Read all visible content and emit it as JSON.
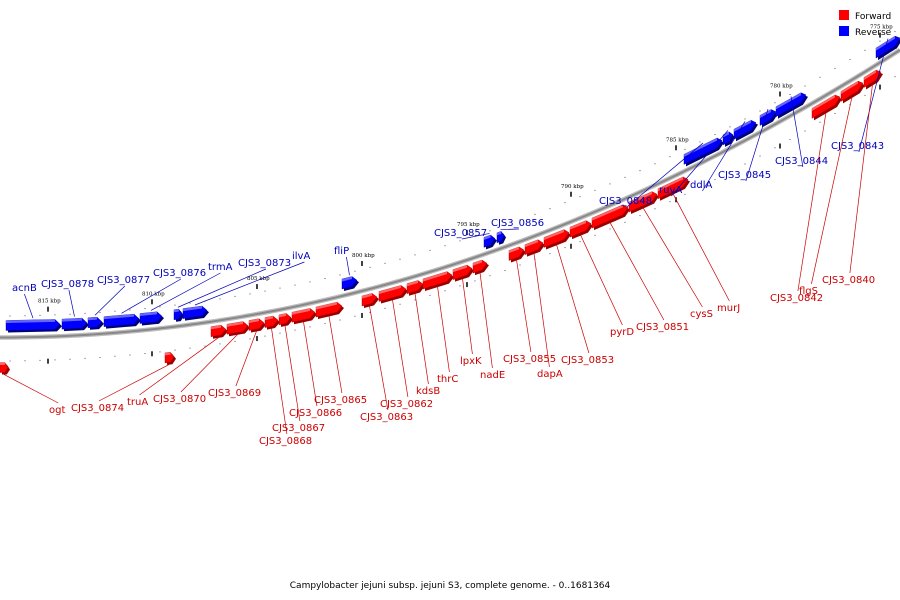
{
  "caption": "Campylobacter jejuni subsp. jejuni S3, complete genome. - 0..1681364",
  "legend": [
    {
      "label": "Forward",
      "color": "#ff0000"
    },
    {
      "label": "Reverse",
      "color": "#0000ff"
    }
  ],
  "colors": {
    "forward": "#ff0000",
    "reverse": "#0000ff",
    "forward_label": "#cc0000",
    "reverse_label": "#0000bb",
    "backbone": "#888888"
  },
  "scale_ticks": [
    {
      "id": "775",
      "label": "775 kbp"
    },
    {
      "id": "780",
      "label": "780 kbp"
    },
    {
      "id": "785",
      "label": "785 kbp"
    },
    {
      "id": "790",
      "label": "790 kbp"
    },
    {
      "id": "795",
      "label": "795 kbp"
    },
    {
      "id": "800",
      "label": "800 kbp"
    },
    {
      "id": "805",
      "label": "805 kbp"
    },
    {
      "id": "810",
      "label": "810 kbp"
    },
    {
      "id": "815",
      "label": "815 kbp"
    }
  ],
  "genes": [
    {
      "id": "acnB",
      "name": "acnB",
      "strand": "reverse"
    },
    {
      "id": "cjs3_0878",
      "name": "CJS3_0878",
      "strand": "reverse"
    },
    {
      "id": "cjs3_0877",
      "name": "CJS3_0877",
      "strand": "reverse"
    },
    {
      "id": "cjs3_0876",
      "name": "CJS3_0876",
      "strand": "reverse"
    },
    {
      "id": "trmA",
      "name": "trmA",
      "strand": "reverse"
    },
    {
      "id": "cjs3_0873",
      "name": "CJS3_0873",
      "strand": "reverse"
    },
    {
      "id": "ilvA",
      "name": "ilvA",
      "strand": "reverse"
    },
    {
      "id": "fliP",
      "name": "fliP",
      "strand": "reverse"
    },
    {
      "id": "cjs3_0857",
      "name": "CJS3_0857",
      "strand": "reverse"
    },
    {
      "id": "cjs3_0856",
      "name": "CJS3_0856",
      "strand": "reverse"
    },
    {
      "id": "cjs3_0848",
      "name": "CJS3_0848",
      "strand": "reverse"
    },
    {
      "id": "ruvA",
      "name": "ruvA",
      "strand": "reverse"
    },
    {
      "id": "ddlA",
      "name": "ddlA",
      "strand": "reverse"
    },
    {
      "id": "cjs3_0845",
      "name": "CJS3_0845",
      "strand": "reverse"
    },
    {
      "id": "cjs3_0844",
      "name": "CJS3_0844",
      "strand": "reverse"
    },
    {
      "id": "cjs3_0843",
      "name": "CJS3_0843",
      "strand": "reverse"
    },
    {
      "id": "ogt",
      "name": "ogt",
      "strand": "forward"
    },
    {
      "id": "cjs3_0874",
      "name": "CJS3_0874",
      "strand": "forward"
    },
    {
      "id": "truA",
      "name": "truA",
      "strand": "forward"
    },
    {
      "id": "cjs3_0870",
      "name": "CJS3_0870",
      "strand": "forward"
    },
    {
      "id": "cjs3_0869",
      "name": "CJS3_0869",
      "strand": "forward"
    },
    {
      "id": "cjs3_0868",
      "name": "CJS3_0868",
      "strand": "forward"
    },
    {
      "id": "cjs3_0867",
      "name": "CJS3_0867",
      "strand": "forward"
    },
    {
      "id": "cjs3_0866",
      "name": "CJS3_0866",
      "strand": "forward"
    },
    {
      "id": "cjs3_0865",
      "name": "CJS3_0865",
      "strand": "forward"
    },
    {
      "id": "cjs3_0863",
      "name": "CJS3_0863",
      "strand": "forward"
    },
    {
      "id": "cjs3_0862",
      "name": "CJS3_0862",
      "strand": "forward"
    },
    {
      "id": "kdsB",
      "name": "kdsB",
      "strand": "forward"
    },
    {
      "id": "thrC",
      "name": "thrC",
      "strand": "forward"
    },
    {
      "id": "lpxK",
      "name": "lpxK",
      "strand": "forward"
    },
    {
      "id": "nadE",
      "name": "nadE",
      "strand": "forward"
    },
    {
      "id": "cjs3_0855",
      "name": "CJS3_0855",
      "strand": "forward"
    },
    {
      "id": "dapA",
      "name": "dapA",
      "strand": "forward"
    },
    {
      "id": "cjs3_0853",
      "name": "CJS3_0853",
      "strand": "forward"
    },
    {
      "id": "pyrD",
      "name": "pyrD",
      "strand": "forward"
    },
    {
      "id": "cjs3_0851",
      "name": "CJS3_0851",
      "strand": "forward"
    },
    {
      "id": "cysS",
      "name": "cysS",
      "strand": "forward"
    },
    {
      "id": "murJ",
      "name": "murJ",
      "strand": "forward"
    },
    {
      "id": "cjs3_0842",
      "name": "CJS3_0842",
      "strand": "forward"
    },
    {
      "id": "flgS",
      "name": "flgS",
      "strand": "forward"
    },
    {
      "id": "cjs3_0840",
      "name": "CJS3_0840",
      "strand": "forward"
    }
  ]
}
